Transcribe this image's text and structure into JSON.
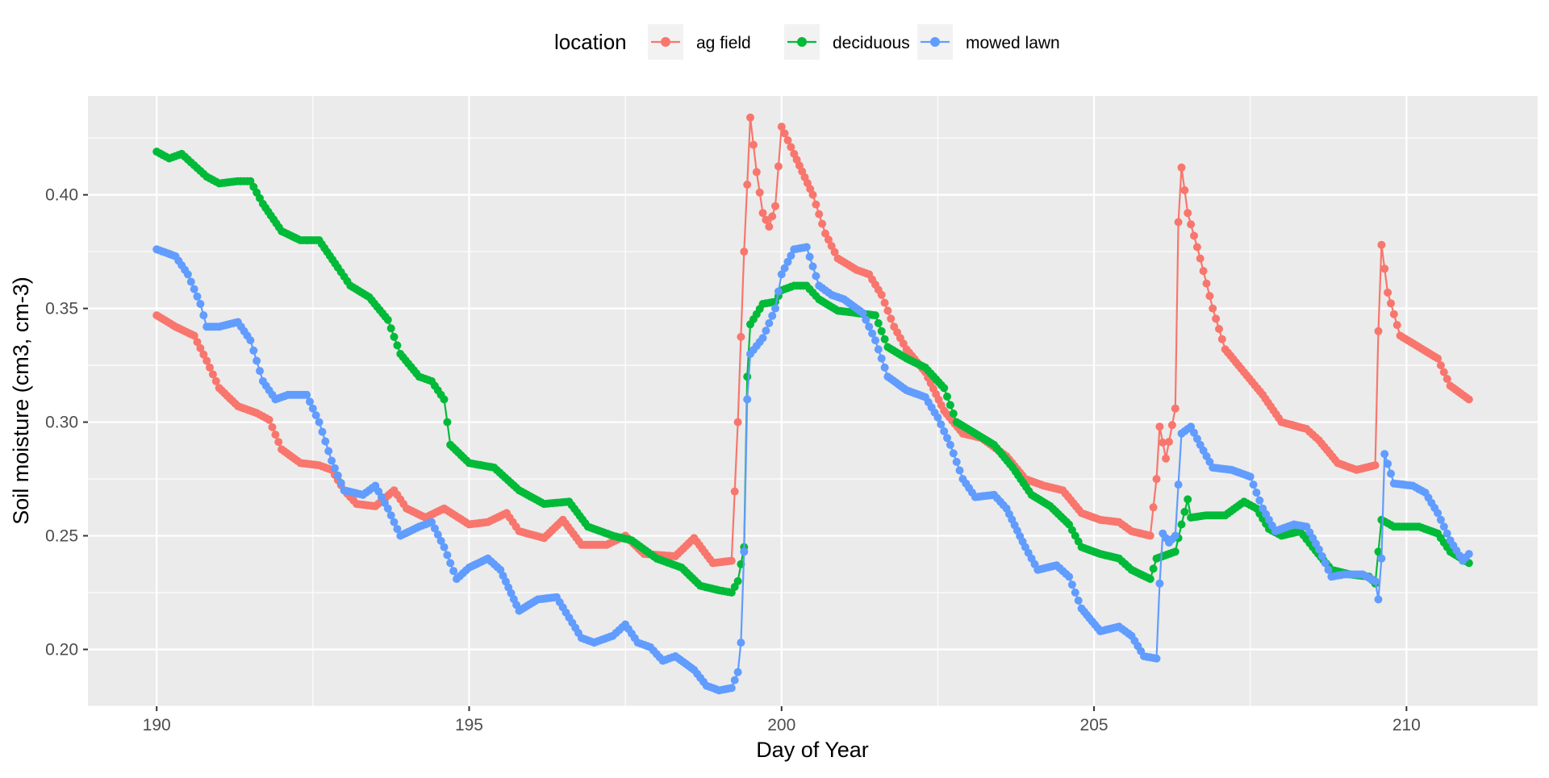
{
  "chart_data": {
    "type": "line",
    "title": "",
    "xlabel": "Day of Year",
    "ylabel": "Soil moisture (cm3, cm-3)",
    "xlim": [
      188.9,
      212.1
    ],
    "ylim": [
      0.175,
      0.4435
    ],
    "x_ticks": [
      190,
      195,
      200,
      205,
      210
    ],
    "y_ticks": [
      0.2,
      0.25,
      0.3,
      0.35,
      0.4
    ],
    "x_tick_labels": [
      "190",
      "195",
      "200",
      "205",
      "210"
    ],
    "y_tick_labels": [
      "0.20",
      "0.25",
      "0.30",
      "0.35",
      "0.40"
    ],
    "grid": true,
    "legend": {
      "title": "location",
      "position": "top"
    },
    "series": [
      {
        "name": "ag field",
        "color": "#F8766D",
        "points": [
          [
            190.0,
            0.347
          ],
          [
            190.3,
            0.342
          ],
          [
            190.6,
            0.338
          ],
          [
            190.8,
            0.327
          ],
          [
            191.0,
            0.315
          ],
          [
            191.3,
            0.307
          ],
          [
            191.6,
            0.304
          ],
          [
            191.8,
            0.301
          ],
          [
            192.0,
            0.288
          ],
          [
            192.3,
            0.282
          ],
          [
            192.6,
            0.281
          ],
          [
            192.8,
            0.279
          ],
          [
            193.0,
            0.27
          ],
          [
            193.2,
            0.264
          ],
          [
            193.5,
            0.263
          ],
          [
            193.8,
            0.27
          ],
          [
            194.0,
            0.262
          ],
          [
            194.3,
            0.258
          ],
          [
            194.6,
            0.262
          ],
          [
            195.0,
            0.255
          ],
          [
            195.3,
            0.256
          ],
          [
            195.6,
            0.26
          ],
          [
            195.8,
            0.252
          ],
          [
            196.2,
            0.249
          ],
          [
            196.5,
            0.257
          ],
          [
            196.8,
            0.246
          ],
          [
            197.2,
            0.246
          ],
          [
            197.5,
            0.25
          ],
          [
            197.8,
            0.242
          ],
          [
            198.3,
            0.241
          ],
          [
            198.6,
            0.249
          ],
          [
            198.9,
            0.238
          ],
          [
            199.2,
            0.239
          ],
          [
            199.3,
            0.3
          ],
          [
            199.4,
            0.375
          ],
          [
            199.5,
            0.434
          ],
          [
            199.6,
            0.41
          ],
          [
            199.7,
            0.392
          ],
          [
            199.8,
            0.386
          ],
          [
            199.9,
            0.395
          ],
          [
            200.0,
            0.43
          ],
          [
            200.2,
            0.418
          ],
          [
            200.5,
            0.4
          ],
          [
            200.7,
            0.383
          ],
          [
            200.9,
            0.372
          ],
          [
            201.2,
            0.367
          ],
          [
            201.4,
            0.365
          ],
          [
            201.6,
            0.356
          ],
          [
            201.8,
            0.342
          ],
          [
            202.0,
            0.332
          ],
          [
            202.3,
            0.322
          ],
          [
            202.6,
            0.305
          ],
          [
            202.9,
            0.295
          ],
          [
            203.2,
            0.293
          ],
          [
            203.6,
            0.285
          ],
          [
            203.9,
            0.275
          ],
          [
            204.2,
            0.272
          ],
          [
            204.5,
            0.27
          ],
          [
            204.8,
            0.26
          ],
          [
            205.1,
            0.257
          ],
          [
            205.4,
            0.256
          ],
          [
            205.6,
            0.252
          ],
          [
            205.9,
            0.25
          ],
          [
            206.0,
            0.275
          ],
          [
            206.05,
            0.298
          ],
          [
            206.15,
            0.284
          ],
          [
            206.3,
            0.306
          ],
          [
            206.35,
            0.388
          ],
          [
            206.4,
            0.412
          ],
          [
            206.5,
            0.392
          ],
          [
            206.7,
            0.372
          ],
          [
            206.9,
            0.35
          ],
          [
            207.1,
            0.332
          ],
          [
            207.4,
            0.322
          ],
          [
            207.7,
            0.312
          ],
          [
            208.0,
            0.3
          ],
          [
            208.4,
            0.297
          ],
          [
            208.6,
            0.292
          ],
          [
            208.9,
            0.282
          ],
          [
            209.2,
            0.279
          ],
          [
            209.5,
            0.281
          ],
          [
            209.55,
            0.34
          ],
          [
            209.6,
            0.378
          ],
          [
            209.7,
            0.357
          ],
          [
            209.9,
            0.338
          ],
          [
            210.2,
            0.333
          ],
          [
            210.5,
            0.328
          ],
          [
            210.7,
            0.316
          ],
          [
            211.0,
            0.31
          ]
        ]
      },
      {
        "name": "deciduous",
        "color": "#00BA38",
        "points": [
          [
            190.0,
            0.419
          ],
          [
            190.2,
            0.416
          ],
          [
            190.4,
            0.418
          ],
          [
            190.6,
            0.413
          ],
          [
            190.8,
            0.408
          ],
          [
            191.0,
            0.405
          ],
          [
            191.3,
            0.406
          ],
          [
            191.5,
            0.406
          ],
          [
            191.7,
            0.396
          ],
          [
            192.0,
            0.384
          ],
          [
            192.3,
            0.38
          ],
          [
            192.6,
            0.38
          ],
          [
            192.9,
            0.368
          ],
          [
            193.1,
            0.36
          ],
          [
            193.4,
            0.355
          ],
          [
            193.7,
            0.345
          ],
          [
            193.9,
            0.33
          ],
          [
            194.2,
            0.32
          ],
          [
            194.4,
            0.318
          ],
          [
            194.6,
            0.31
          ],
          [
            194.65,
            0.3
          ],
          [
            194.7,
            0.29
          ],
          [
            195.0,
            0.282
          ],
          [
            195.4,
            0.28
          ],
          [
            195.8,
            0.27
          ],
          [
            196.2,
            0.264
          ],
          [
            196.6,
            0.265
          ],
          [
            196.9,
            0.254
          ],
          [
            197.3,
            0.25
          ],
          [
            197.6,
            0.248
          ],
          [
            198.0,
            0.24
          ],
          [
            198.4,
            0.236
          ],
          [
            198.7,
            0.228
          ],
          [
            199.0,
            0.226
          ],
          [
            199.2,
            0.225
          ],
          [
            199.3,
            0.23
          ],
          [
            199.4,
            0.245
          ],
          [
            199.45,
            0.32
          ],
          [
            199.5,
            0.343
          ],
          [
            199.7,
            0.352
          ],
          [
            199.9,
            0.353
          ],
          [
            200.0,
            0.358
          ],
          [
            200.2,
            0.36
          ],
          [
            200.4,
            0.36
          ],
          [
            200.6,
            0.354
          ],
          [
            200.9,
            0.349
          ],
          [
            201.2,
            0.348
          ],
          [
            201.5,
            0.347
          ],
          [
            201.7,
            0.333
          ],
          [
            202.0,
            0.328
          ],
          [
            202.3,
            0.324
          ],
          [
            202.6,
            0.315
          ],
          [
            202.8,
            0.3
          ],
          [
            203.1,
            0.295
          ],
          [
            203.4,
            0.29
          ],
          [
            203.7,
            0.28
          ],
          [
            204.0,
            0.268
          ],
          [
            204.3,
            0.263
          ],
          [
            204.6,
            0.255
          ],
          [
            204.8,
            0.245
          ],
          [
            205.1,
            0.242
          ],
          [
            205.4,
            0.24
          ],
          [
            205.6,
            0.235
          ],
          [
            205.9,
            0.231
          ],
          [
            206.0,
            0.24
          ],
          [
            206.3,
            0.243
          ],
          [
            206.4,
            0.255
          ],
          [
            206.5,
            0.266
          ],
          [
            206.55,
            0.258
          ],
          [
            206.8,
            0.259
          ],
          [
            207.1,
            0.259
          ],
          [
            207.4,
            0.265
          ],
          [
            207.6,
            0.262
          ],
          [
            207.8,
            0.253
          ],
          [
            208.0,
            0.25
          ],
          [
            208.3,
            0.252
          ],
          [
            208.5,
            0.245
          ],
          [
            208.8,
            0.235
          ],
          [
            209.1,
            0.233
          ],
          [
            209.4,
            0.232
          ],
          [
            209.5,
            0.229
          ],
          [
            209.6,
            0.257
          ],
          [
            209.8,
            0.254
          ],
          [
            210.2,
            0.254
          ],
          [
            210.5,
            0.251
          ],
          [
            210.7,
            0.243
          ],
          [
            211.0,
            0.238
          ]
        ]
      },
      {
        "name": "mowed lawn",
        "color": "#619CFF",
        "points": [
          [
            190.0,
            0.376
          ],
          [
            190.3,
            0.373
          ],
          [
            190.5,
            0.365
          ],
          [
            190.7,
            0.352
          ],
          [
            190.8,
            0.342
          ],
          [
            191.0,
            0.342
          ],
          [
            191.3,
            0.344
          ],
          [
            191.5,
            0.336
          ],
          [
            191.7,
            0.318
          ],
          [
            191.9,
            0.31
          ],
          [
            192.1,
            0.312
          ],
          [
            192.4,
            0.312
          ],
          [
            192.6,
            0.3
          ],
          [
            192.8,
            0.283
          ],
          [
            193.0,
            0.27
          ],
          [
            193.3,
            0.268
          ],
          [
            193.5,
            0.272
          ],
          [
            193.7,
            0.262
          ],
          [
            193.9,
            0.25
          ],
          [
            194.2,
            0.254
          ],
          [
            194.4,
            0.256
          ],
          [
            194.6,
            0.245
          ],
          [
            194.8,
            0.231
          ],
          [
            195.0,
            0.236
          ],
          [
            195.3,
            0.24
          ],
          [
            195.5,
            0.235
          ],
          [
            195.8,
            0.217
          ],
          [
            196.1,
            0.222
          ],
          [
            196.4,
            0.223
          ],
          [
            196.6,
            0.214
          ],
          [
            196.8,
            0.205
          ],
          [
            197.0,
            0.203
          ],
          [
            197.3,
            0.206
          ],
          [
            197.5,
            0.211
          ],
          [
            197.7,
            0.203
          ],
          [
            197.9,
            0.201
          ],
          [
            198.1,
            0.195
          ],
          [
            198.3,
            0.197
          ],
          [
            198.6,
            0.191
          ],
          [
            198.8,
            0.184
          ],
          [
            199.0,
            0.182
          ],
          [
            199.2,
            0.183
          ],
          [
            199.3,
            0.19
          ],
          [
            199.35,
            0.203
          ],
          [
            199.4,
            0.243
          ],
          [
            199.45,
            0.31
          ],
          [
            199.5,
            0.33
          ],
          [
            199.7,
            0.337
          ],
          [
            199.9,
            0.35
          ],
          [
            200.0,
            0.365
          ],
          [
            200.2,
            0.376
          ],
          [
            200.4,
            0.377
          ],
          [
            200.6,
            0.36
          ],
          [
            200.8,
            0.356
          ],
          [
            201.0,
            0.354
          ],
          [
            201.3,
            0.348
          ],
          [
            201.5,
            0.336
          ],
          [
            201.7,
            0.32
          ],
          [
            202.0,
            0.314
          ],
          [
            202.3,
            0.311
          ],
          [
            202.5,
            0.302
          ],
          [
            202.7,
            0.29
          ],
          [
            202.9,
            0.275
          ],
          [
            203.1,
            0.267
          ],
          [
            203.4,
            0.268
          ],
          [
            203.6,
            0.262
          ],
          [
            203.9,
            0.245
          ],
          [
            204.1,
            0.235
          ],
          [
            204.4,
            0.237
          ],
          [
            204.6,
            0.232
          ],
          [
            204.8,
            0.218
          ],
          [
            205.1,
            0.208
          ],
          [
            205.4,
            0.21
          ],
          [
            205.6,
            0.206
          ],
          [
            205.8,
            0.197
          ],
          [
            206.0,
            0.196
          ],
          [
            206.05,
            0.229
          ],
          [
            206.1,
            0.251
          ],
          [
            206.2,
            0.247
          ],
          [
            206.3,
            0.25
          ],
          [
            206.4,
            0.295
          ],
          [
            206.55,
            0.298
          ],
          [
            206.7,
            0.29
          ],
          [
            206.9,
            0.28
          ],
          [
            207.2,
            0.279
          ],
          [
            207.5,
            0.276
          ],
          [
            207.7,
            0.262
          ],
          [
            207.9,
            0.252
          ],
          [
            208.2,
            0.255
          ],
          [
            208.4,
            0.254
          ],
          [
            208.6,
            0.244
          ],
          [
            208.8,
            0.232
          ],
          [
            209.0,
            0.233
          ],
          [
            209.3,
            0.233
          ],
          [
            209.5,
            0.23
          ],
          [
            209.55,
            0.222
          ],
          [
            209.6,
            0.24
          ],
          [
            209.65,
            0.286
          ],
          [
            209.8,
            0.273
          ],
          [
            210.1,
            0.272
          ],
          [
            210.3,
            0.269
          ],
          [
            210.5,
            0.26
          ],
          [
            210.7,
            0.248
          ],
          [
            210.9,
            0.239
          ],
          [
            211.0,
            0.242
          ]
        ]
      }
    ]
  }
}
